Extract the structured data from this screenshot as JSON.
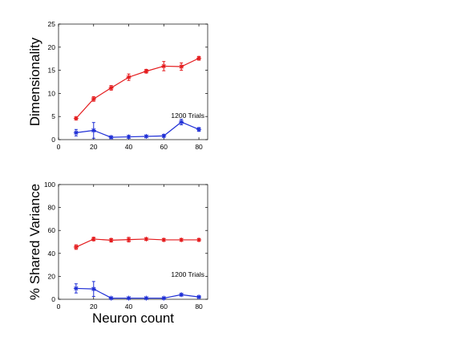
{
  "colors": {
    "series_red": "#e41a1c",
    "series_blue": "#1f2fd6",
    "axis": "#000000"
  },
  "chart_data": [
    {
      "type": "line",
      "title": "",
      "xlabel": "",
      "ylabel": "Dimensionality",
      "xlim": [
        0,
        85
      ],
      "ylim": [
        0,
        25
      ],
      "xticks": [
        0,
        20,
        40,
        60,
        80
      ],
      "yticks": [
        0,
        5,
        10,
        15,
        20,
        25
      ],
      "annotation": "1200 Trials",
      "grid": false,
      "series": [
        {
          "color": "#e41a1c",
          "x": [
            10,
            20,
            30,
            40,
            50,
            60,
            70,
            80
          ],
          "y": [
            4.6,
            8.8,
            11.2,
            13.5,
            14.8,
            15.9,
            15.8,
            17.6
          ],
          "err": [
            0.3,
            0.5,
            0.5,
            0.7,
            0.4,
            1.0,
            0.8,
            0.4
          ]
        },
        {
          "color": "#1f2fd6",
          "x": [
            10,
            20,
            30,
            40,
            50,
            60,
            70,
            80
          ],
          "y": [
            1.5,
            2.0,
            0.5,
            0.6,
            0.7,
            0.8,
            3.8,
            2.2
          ],
          "err": [
            0.7,
            1.7,
            0.2,
            0.3,
            0.2,
            0.3,
            0.6,
            0.4
          ]
        }
      ]
    },
    {
      "type": "line",
      "title": "",
      "xlabel": "Neuron count",
      "ylabel": "% Shared Variance",
      "xlim": [
        0,
        85
      ],
      "ylim": [
        0,
        100
      ],
      "xticks": [
        0,
        20,
        40,
        60,
        80
      ],
      "yticks": [
        0,
        20,
        40,
        60,
        80,
        100
      ],
      "annotation": "1200 Trials",
      "grid": false,
      "series": [
        {
          "color": "#e41a1c",
          "x": [
            10,
            20,
            30,
            40,
            50,
            60,
            70,
            80
          ],
          "y": [
            45.5,
            52.5,
            51.5,
            52.0,
            52.5,
            51.8,
            51.8,
            51.8
          ],
          "err": [
            2.0,
            1.5,
            1.5,
            2.0,
            1.0,
            1.0,
            1.0,
            1.0
          ]
        },
        {
          "color": "#1f2fd6",
          "x": [
            10,
            20,
            30,
            40,
            50,
            60,
            70,
            80
          ],
          "y": [
            9.5,
            9.0,
            1.0,
            1.0,
            1.0,
            1.0,
            4.0,
            2.0
          ],
          "err": [
            4.0,
            6.5,
            0.5,
            0.5,
            0.5,
            0.5,
            1.0,
            0.5
          ]
        }
      ]
    }
  ]
}
